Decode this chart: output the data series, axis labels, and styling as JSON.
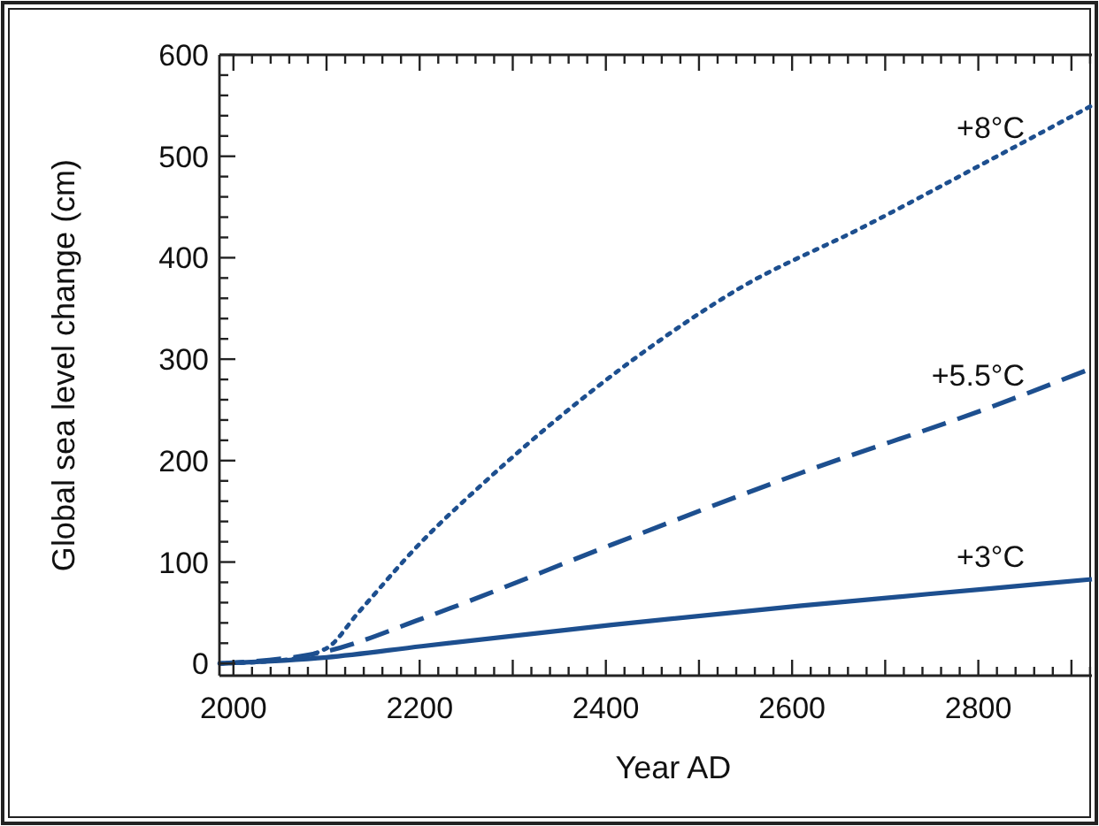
{
  "chart_data": {
    "type": "line",
    "xlabel": "Year AD",
    "ylabel": "Global sea level change (cm)",
    "xlim": [
      1985,
      2922
    ],
    "ylim": [
      -12,
      600
    ],
    "xticks": [
      2000,
      {
        "value": 2020,
        "label": null
      },
      {
        "value": 2040,
        "label": null
      },
      {
        "value": 2060,
        "label": null
      },
      {
        "value": 2080,
        "label": null
      },
      {
        "value": 2100,
        "label": null
      },
      {
        "value": 2120,
        "label": null
      },
      {
        "value": 2140,
        "label": null
      },
      {
        "value": 2160,
        "label": null
      },
      {
        "value": 2180,
        "label": null
      },
      2200,
      {
        "value": 2220,
        "label": null
      },
      {
        "value": 2240,
        "label": null
      },
      {
        "value": 2260,
        "label": null
      },
      {
        "value": 2280,
        "label": null
      },
      {
        "value": 2300,
        "label": null
      },
      {
        "value": 2320,
        "label": null
      },
      {
        "value": 2340,
        "label": null
      },
      {
        "value": 2360,
        "label": null
      },
      {
        "value": 2380,
        "label": null
      },
      2400,
      {
        "value": 2420,
        "label": null
      },
      {
        "value": 2440,
        "label": null
      },
      {
        "value": 2460,
        "label": null
      },
      {
        "value": 2480,
        "label": null
      },
      {
        "value": 2500,
        "label": null
      },
      {
        "value": 2520,
        "label": null
      },
      {
        "value": 2540,
        "label": null
      },
      {
        "value": 2560,
        "label": null
      },
      {
        "value": 2580,
        "label": null
      },
      2600,
      {
        "value": 2620,
        "label": null
      },
      {
        "value": 2640,
        "label": null
      },
      {
        "value": 2660,
        "label": null
      },
      {
        "value": 2680,
        "label": null
      },
      {
        "value": 2700,
        "label": null
      },
      {
        "value": 2720,
        "label": null
      },
      {
        "value": 2740,
        "label": null
      },
      {
        "value": 2760,
        "label": null
      },
      {
        "value": 2780,
        "label": null
      },
      2800,
      {
        "value": 2820,
        "label": null
      },
      {
        "value": 2840,
        "label": null
      },
      {
        "value": 2860,
        "label": null
      },
      {
        "value": 2880,
        "label": null
      },
      {
        "value": 2900,
        "label": null
      },
      {
        "value": 2920,
        "label": null
      }
    ],
    "yticks": [
      0,
      {
        "value": 20,
        "label": null
      },
      {
        "value": 40,
        "label": null
      },
      {
        "value": 60,
        "label": null
      },
      {
        "value": 80,
        "label": null
      },
      100,
      {
        "value": 120,
        "label": null
      },
      {
        "value": 140,
        "label": null
      },
      {
        "value": 160,
        "label": null
      },
      {
        "value": 180,
        "label": null
      },
      200,
      {
        "value": 220,
        "label": null
      },
      {
        "value": 240,
        "label": null
      },
      {
        "value": 260,
        "label": null
      },
      {
        "value": 280,
        "label": null
      },
      300,
      {
        "value": 320,
        "label": null
      },
      {
        "value": 340,
        "label": null
      },
      {
        "value": 360,
        "label": null
      },
      {
        "value": 380,
        "label": null
      },
      400,
      {
        "value": 420,
        "label": null
      },
      {
        "value": 440,
        "label": null
      },
      {
        "value": 460,
        "label": null
      },
      {
        "value": 480,
        "label": null
      },
      500,
      {
        "value": 520,
        "label": null
      },
      {
        "value": 540,
        "label": null
      },
      {
        "value": 560,
        "label": null
      },
      {
        "value": 580,
        "label": null
      },
      600
    ],
    "grid": false,
    "series": [
      {
        "name": "+3°C",
        "color": "#1d4f8f",
        "line_style": "solid",
        "x": [
          1985,
          2100,
          2202,
          2406,
          2610,
          2814,
          2922
        ],
        "values": [
          0,
          6,
          17,
          38,
          57,
          74,
          83
        ]
      },
      {
        "name": "+5.5°C",
        "color": "#1d4f8f",
        "line_style": "dashed",
        "x": [
          1985,
          2100,
          2202,
          2406,
          2610,
          2814,
          2922
        ],
        "values": [
          0,
          12,
          44,
          117,
          188,
          253,
          291
        ]
      },
      {
        "name": "+8°C",
        "color": "#1d4f8f",
        "line_style": "dotted",
        "x": [
          1985,
          2050,
          2100,
          2134,
          2200,
          2270,
          2433,
          2542,
          2678,
          2814,
          2922
        ],
        "values": [
          0,
          3,
          15,
          50,
          118,
          179,
          302,
          369,
          431,
          497,
          550
        ]
      }
    ]
  }
}
